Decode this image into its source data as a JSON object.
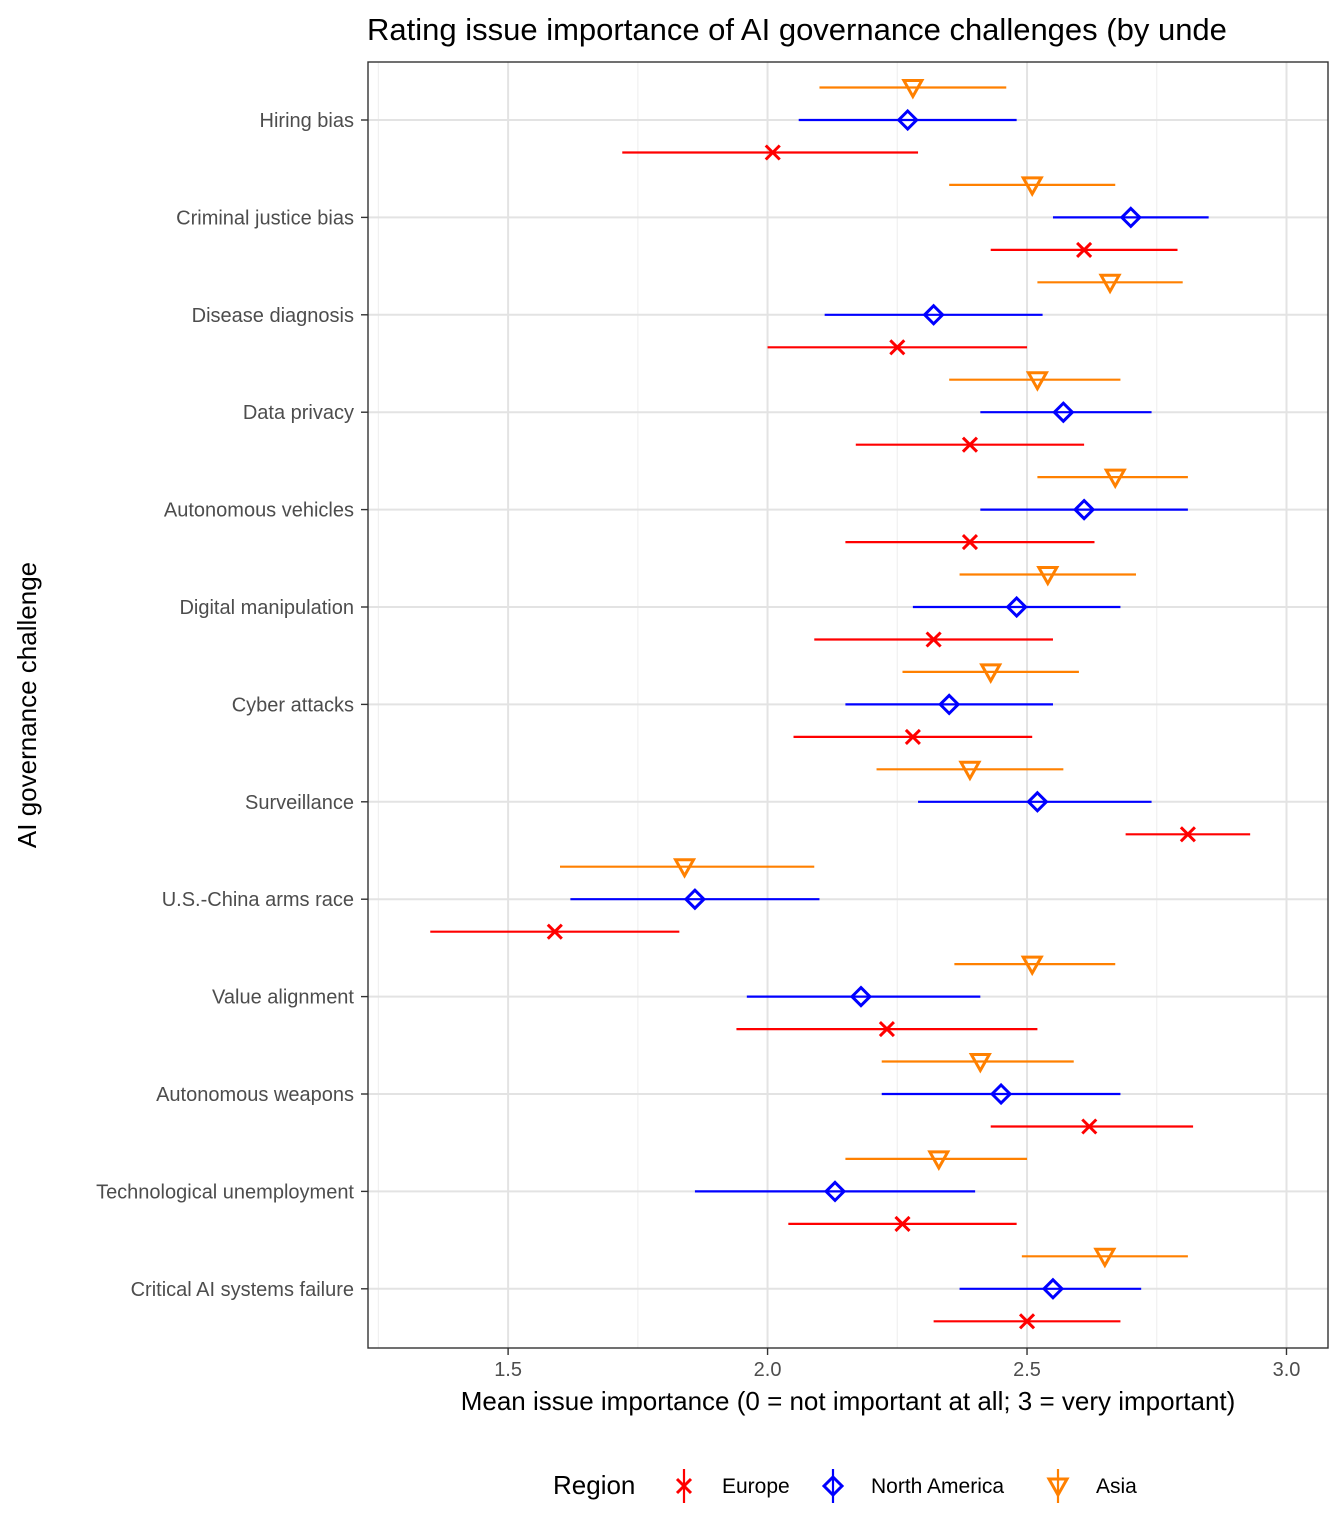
{
  "chart_data": {
    "type": "scatter",
    "title": "Rating issue importance of AI governance challenges (by unde",
    "xlabel": "Mean issue importance (0 = not important at all; 3 = very important)",
    "ylabel": "AI governance challenge",
    "xlim": [
      1.23,
      3.08
    ],
    "x_ticks": [
      "1.5",
      "2.0",
      "2.5",
      "3.0"
    ],
    "grid": true,
    "legend_position": "bottom",
    "legend_title": "Region",
    "categories": [
      "Hiring bias",
      "Criminal justice bias",
      "Disease diagnosis",
      "Data privacy",
      "Autonomous vehicles",
      "Digital manipulation",
      "Cyber attacks",
      "Surveillance",
      "U.S.-China arms race",
      "Value alignment",
      "Autonomous weapons",
      "Technological unemployment",
      "Critical AI systems failure"
    ],
    "series": [
      {
        "name": "Europe",
        "color": "#ff0000",
        "marker": "x",
        "mean": [
          2.01,
          2.61,
          2.25,
          2.39,
          2.39,
          2.32,
          2.28,
          2.81,
          1.59,
          2.23,
          2.62,
          2.26,
          2.5
        ],
        "lower": [
          1.72,
          2.43,
          2.0,
          2.17,
          2.15,
          2.09,
          2.05,
          2.69,
          1.35,
          1.94,
          2.43,
          2.04,
          2.32
        ],
        "upper": [
          2.29,
          2.79,
          2.5,
          2.61,
          2.63,
          2.55,
          2.51,
          2.93,
          1.83,
          2.52,
          2.82,
          2.48,
          2.68
        ]
      },
      {
        "name": "North America",
        "color": "#0000ff",
        "marker": "diamond",
        "mean": [
          2.27,
          2.7,
          2.32,
          2.57,
          2.61,
          2.48,
          2.35,
          2.52,
          1.86,
          2.18,
          2.45,
          2.13,
          2.55
        ],
        "lower": [
          2.06,
          2.55,
          2.11,
          2.41,
          2.41,
          2.28,
          2.15,
          2.29,
          1.62,
          1.96,
          2.22,
          1.86,
          2.37
        ],
        "upper": [
          2.48,
          2.85,
          2.53,
          2.74,
          2.81,
          2.68,
          2.55,
          2.74,
          2.1,
          2.41,
          2.68,
          2.4,
          2.72
        ]
      },
      {
        "name": "Asia",
        "color": "#ff8000",
        "marker": "triangle-down",
        "mean": [
          2.28,
          2.51,
          2.66,
          2.52,
          2.67,
          2.54,
          2.43,
          2.39,
          1.84,
          2.51,
          2.41,
          2.33,
          2.65
        ],
        "lower": [
          2.1,
          2.35,
          2.52,
          2.35,
          2.52,
          2.37,
          2.26,
          2.21,
          1.6,
          2.36,
          2.22,
          2.15,
          2.49
        ],
        "upper": [
          2.46,
          2.67,
          2.8,
          2.68,
          2.81,
          2.71,
          2.6,
          2.57,
          2.09,
          2.67,
          2.59,
          2.5,
          2.81
        ]
      }
    ]
  }
}
